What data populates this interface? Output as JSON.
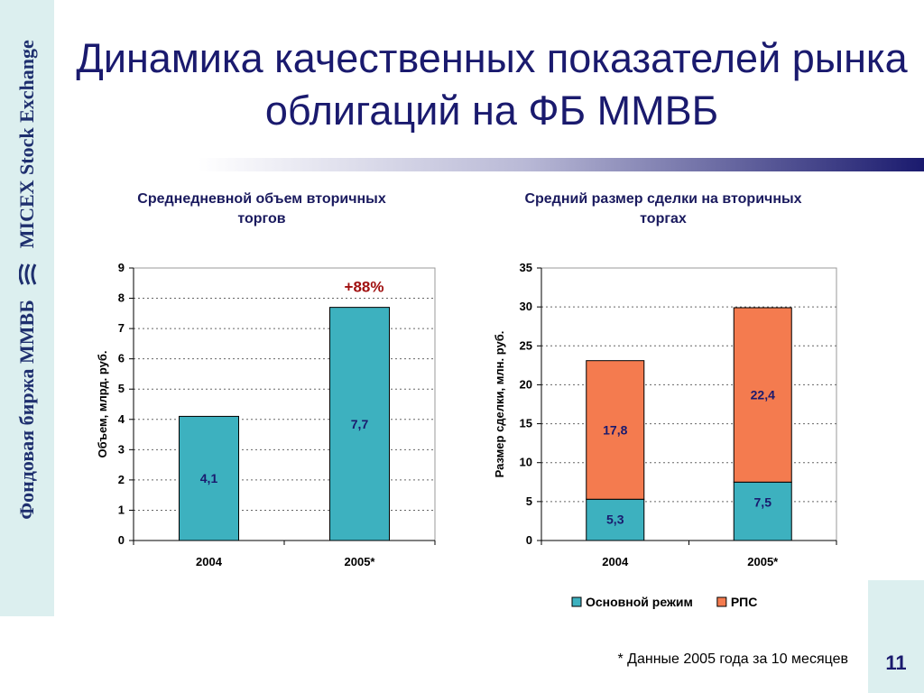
{
  "slide": {
    "title": "Динамика качественных показателей рынка облигаций на ФБ ММВБ",
    "sidebar_text": "Фондовая биржа ММВБ",
    "sidebar_text_en": "MICEX Stock Exchange",
    "footnote": "* Данные 2005 года за 10 месяцев",
    "page_number": "11",
    "colors": {
      "teal": "#3db1bf",
      "orange": "#f47b4f",
      "navy": "#1a1a6e",
      "sidebar": "#dcefef"
    }
  },
  "chart_data": [
    {
      "type": "bar",
      "title": "Среднедневной объем вторичных торгов",
      "ylabel": "Объем, млрд. руб.",
      "categories": [
        "2004",
        "2005*"
      ],
      "values": [
        4.1,
        7.7
      ],
      "value_labels": [
        "4,1",
        "7,7"
      ],
      "ylim": [
        0,
        9
      ],
      "yticks": [
        "0",
        "1",
        "2",
        "3",
        "4",
        "5",
        "6",
        "7",
        "8",
        "9"
      ],
      "annotation": "+88%",
      "grid": true,
      "color": "#3db1bf"
    },
    {
      "type": "bar",
      "stacked": true,
      "title": "Средний размер сделки на вторичных торгах",
      "ylabel": "Размер сделки, млн. руб.",
      "categories": [
        "2004",
        "2005*"
      ],
      "series": [
        {
          "name": "Основной режим",
          "values": [
            5.3,
            7.5
          ],
          "value_labels": [
            "5,3",
            "7,5"
          ],
          "color": "#3db1bf"
        },
        {
          "name": "РПС",
          "values": [
            17.8,
            22.4
          ],
          "value_labels": [
            "17,8",
            "22,4"
          ],
          "color": "#f47b4f"
        }
      ],
      "ylim": [
        0,
        35
      ],
      "yticks": [
        "0",
        "5",
        "10",
        "15",
        "20",
        "25",
        "30",
        "35"
      ],
      "grid": true,
      "legend": "bottom"
    }
  ]
}
